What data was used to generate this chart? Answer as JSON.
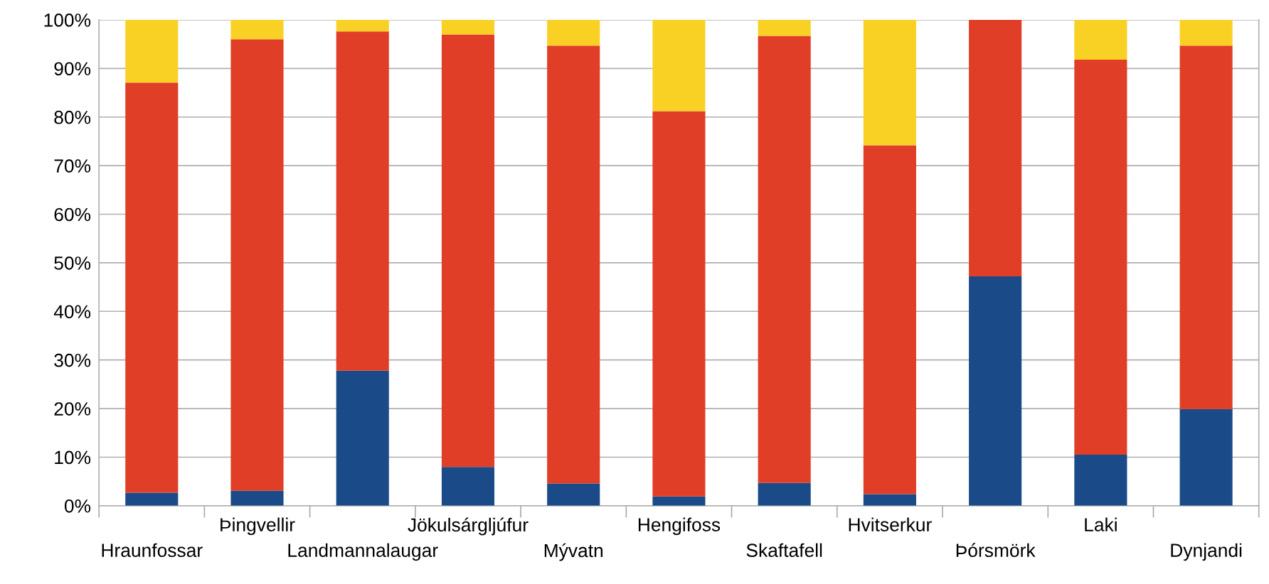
{
  "chart_data": {
    "type": "bar",
    "stacked": true,
    "categories": [
      "Hraunfossar",
      "Þingvellir",
      "Landmannalaugar",
      "Jökulsárgljúfur",
      "Mývatn",
      "Hengifoss",
      "Skaftafell",
      "Hvitserkur",
      "Þórsmörk",
      "Laki",
      "Dynjandi"
    ],
    "series": [
      {
        "color": "#1a4a87",
        "values": [
          2.7,
          3.1,
          27.8,
          8.0,
          4.6,
          1.9,
          4.7,
          2.4,
          47.2,
          10.5,
          19.9
        ]
      },
      {
        "color": "#e03e26",
        "values": [
          84.4,
          92.9,
          69.8,
          89.0,
          90.1,
          79.3,
          92.0,
          71.8,
          52.8,
          81.3,
          74.8
        ]
      },
      {
        "color": "#f9d125",
        "values": [
          12.9,
          4.0,
          2.4,
          3.0,
          5.3,
          18.8,
          3.3,
          25.8,
          0,
          8.2,
          5.3
        ]
      }
    ],
    "ylim": [
      0,
      100
    ],
    "yticks": [
      {
        "value": 0,
        "label": "0%"
      },
      {
        "value": 10,
        "label": "10%"
      },
      {
        "value": 20,
        "label": "20%"
      },
      {
        "value": 30,
        "label": "30%"
      },
      {
        "value": 40,
        "label": "40%"
      },
      {
        "value": 50,
        "label": "50%"
      },
      {
        "value": 60,
        "label": "60%"
      },
      {
        "value": 70,
        "label": "70%"
      },
      {
        "value": 80,
        "label": "80%"
      },
      {
        "value": 90,
        "label": "90%"
      },
      {
        "value": 100,
        "label": "100%"
      }
    ],
    "grid": "y",
    "legend": false
  }
}
